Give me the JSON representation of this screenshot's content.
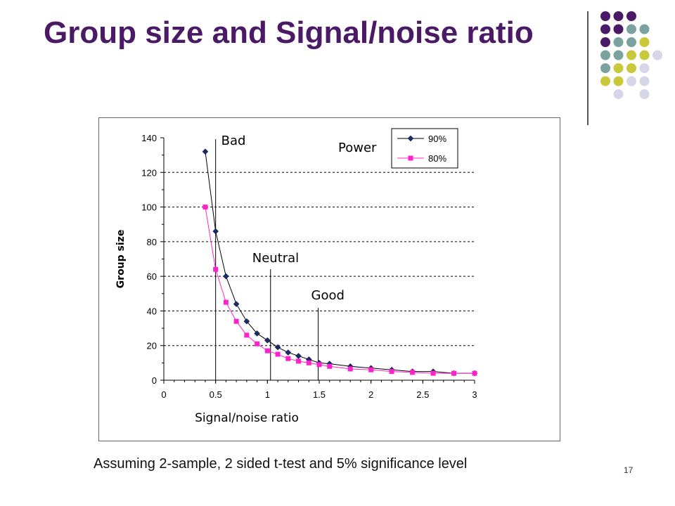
{
  "slide": {
    "title": "Group size and Signal/noise ratio",
    "caption": "Assuming 2-sample, 2 sided t-test and 5% significance level",
    "page_number": "17",
    "colors": {
      "title": "#4b1a66",
      "purple": "#4b1a66",
      "teal": "#7aa39f",
      "olive": "#c8c83a",
      "lavender": "#d6d6e8"
    }
  },
  "chart_data": {
    "type": "line",
    "xlabel": "Signal/noise ratio",
    "ylabel": "Group size",
    "xlim": [
      0,
      3
    ],
    "ylim": [
      0,
      140
    ],
    "x_ticks": [
      0,
      0.5,
      1,
      1.5,
      2,
      2.5,
      3
    ],
    "x_tick_labels": [
      "0",
      "0.5",
      "1",
      "1.5",
      "2",
      "2.5",
      "3"
    ],
    "y_ticks": [
      0,
      20,
      40,
      60,
      80,
      100,
      120,
      140
    ],
    "y_tick_labels": [
      "0",
      "20",
      "40",
      "60",
      "80",
      "100",
      "120",
      "140"
    ],
    "grid": "horizontal dotted",
    "legend": {
      "title": "Power",
      "position": "top-right"
    },
    "series": [
      {
        "name": "90%",
        "color": "#1a2a70",
        "marker": "diamond",
        "x": [
          0.4,
          0.5,
          0.6,
          0.7,
          0.8,
          0.9,
          1.0,
          1.1,
          1.2,
          1.3,
          1.4,
          1.5,
          1.6,
          1.8,
          2.0,
          2.2,
          2.4,
          2.6,
          2.8,
          3.0
        ],
        "y": [
          132,
          86,
          60,
          44,
          34,
          27,
          23,
          19,
          16,
          14,
          12,
          10,
          9.5,
          8,
          7,
          6,
          5,
          5,
          4,
          4
        ]
      },
      {
        "name": "80%",
        "color": "#ff22cc",
        "marker": "square",
        "x": [
          0.4,
          0.5,
          0.6,
          0.7,
          0.8,
          0.9,
          1.0,
          1.1,
          1.2,
          1.3,
          1.4,
          1.5,
          1.6,
          1.8,
          2.0,
          2.2,
          2.4,
          2.6,
          2.8,
          3.0
        ],
        "y": [
          100,
          64,
          45,
          34,
          26,
          21,
          17,
          15,
          12.5,
          11,
          10,
          9,
          8,
          6.5,
          6,
          5,
          4.5,
          4,
          4,
          4
        ]
      }
    ],
    "annotations": [
      {
        "text": "Bad",
        "x": 0.5
      },
      {
        "text": "Neutral",
        "x": 1.03
      },
      {
        "text": "Good",
        "x": 1.49
      }
    ]
  }
}
